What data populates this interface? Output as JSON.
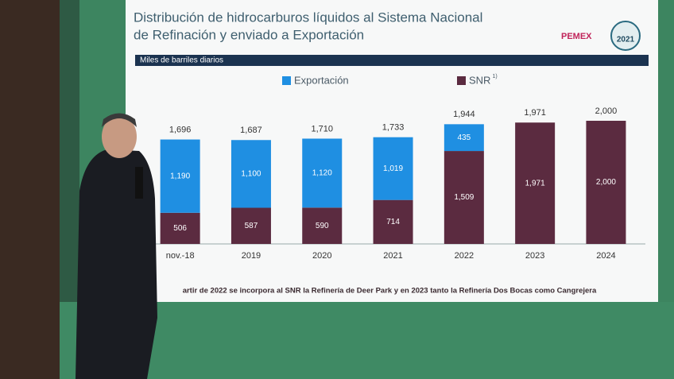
{
  "chart_data": {
    "type": "stacked-bar",
    "title": [
      "Distribución de hidrocarburos líquidos al Sistema Nacional",
      "de Refinación y enviado a Exportación"
    ],
    "subtitle": "Miles de barriles diarios",
    "logos": [
      "PEMEX",
      "2021"
    ],
    "categories": [
      "nov.-18",
      "2019",
      "2020",
      "2021",
      "2022",
      "2023",
      "2024"
    ],
    "series": [
      {
        "name": "SNR",
        "note_marker": "1)",
        "color": "#5b2b40",
        "values": [
          506,
          587,
          590,
          714,
          1509,
          1971,
          2000
        ],
        "value_labels": [
          "506",
          "587",
          "590",
          "714",
          "1,509",
          "1,971",
          "2,000"
        ]
      },
      {
        "name": "Exportación",
        "color": "#1f8fe2",
        "values": [
          1190,
          1100,
          1120,
          1019,
          435,
          null,
          null
        ],
        "value_labels": [
          "1,190",
          "1,100",
          "1,120",
          "1,019",
          "435",
          null,
          null
        ]
      }
    ],
    "totals": {
      "values": [
        1696,
        1687,
        1710,
        1733,
        1944,
        1971,
        2000
      ],
      "value_labels": [
        "1,696",
        "1,687",
        "1,710",
        "1,733",
        "1,944",
        "1,971",
        "2,000"
      ]
    },
    "footnote": "artir de 2022 se incorpora al SNR la Refinería de Deer Park y en 2023 tanto la Refinería Dos Bocas como Cangrejera"
  }
}
